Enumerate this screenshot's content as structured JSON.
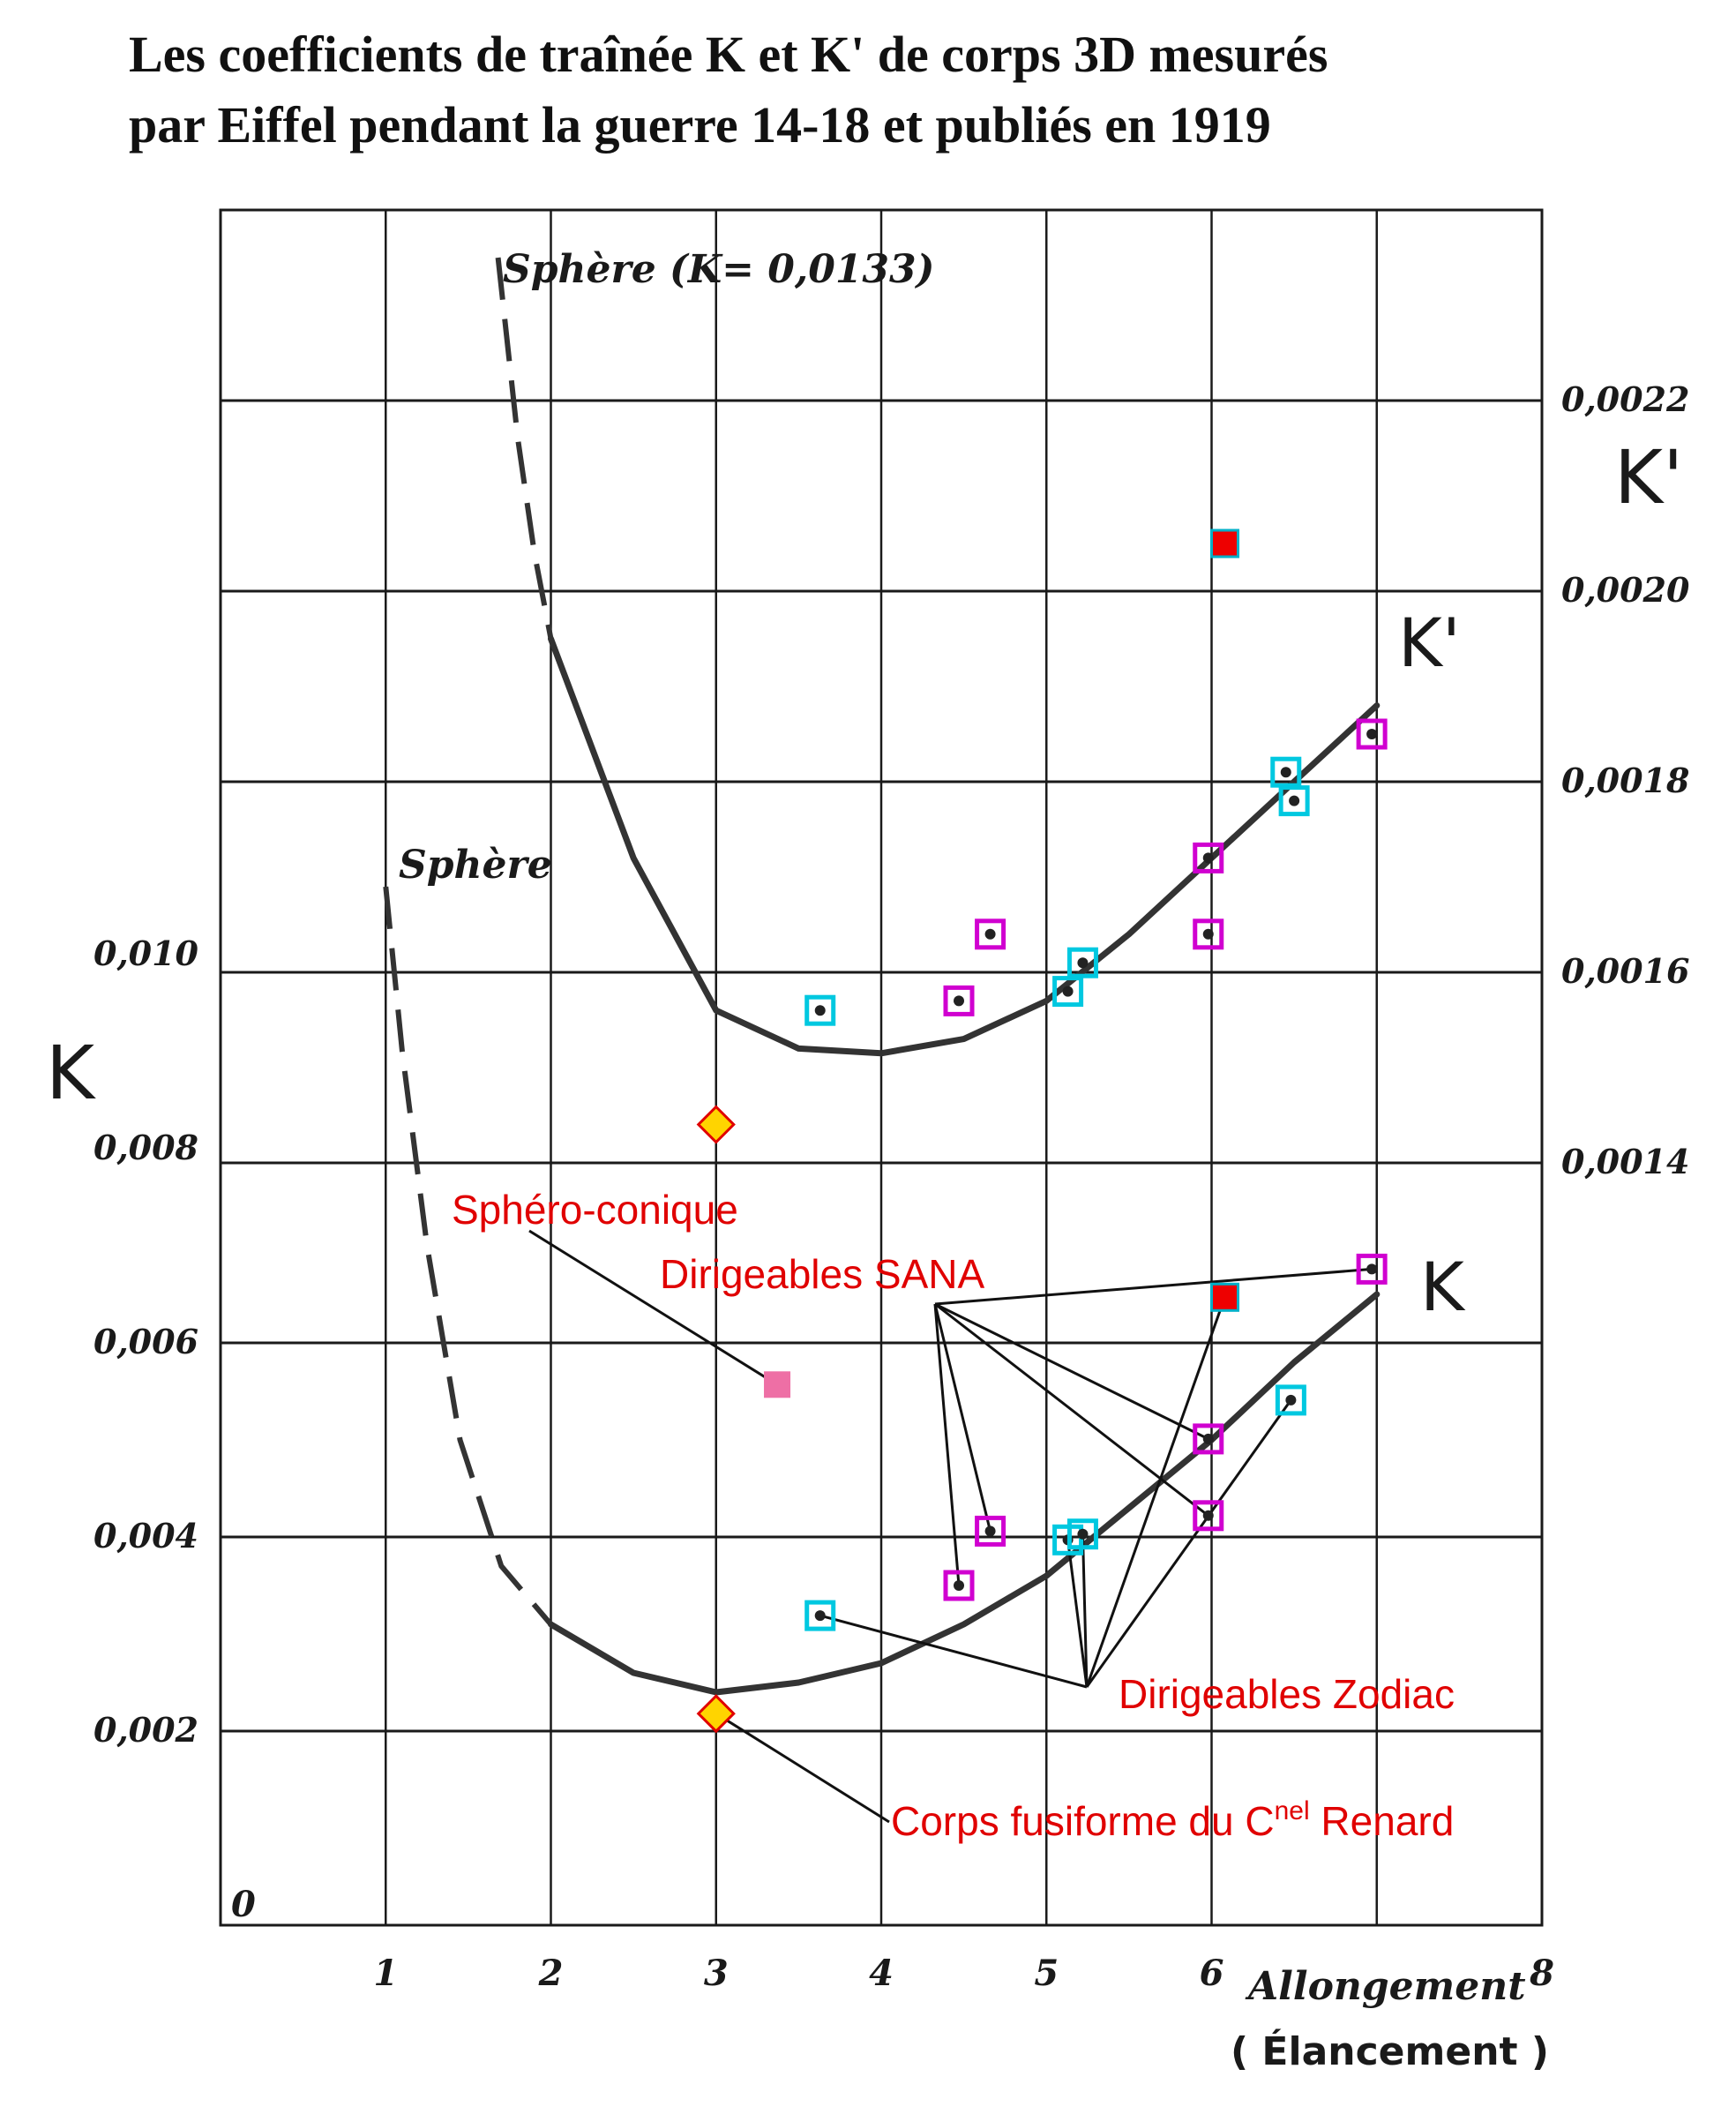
{
  "title_lines": [
    "Les coefficients de traînée K et K' de corps 3D mesurés",
    "par Eiffel pendant la guerre 14-18 et publiés en 1919"
  ],
  "colors": {
    "curve": "#333333",
    "grid": "#1a1a1a",
    "annotation": "#e00000",
    "marker_sana": "#d000d0",
    "marker_zodiac": "#00c8e0",
    "marker_red": "#ee0000",
    "marker_pink": "#ee6fa5",
    "marker_diamond": "#ffd400"
  },
  "chart_data": {
    "type": "scatter",
    "xlabel": "Allongement",
    "xlabel_sub": "( Élancement )",
    "ylabel_left": "K",
    "ylabel_right": "K'",
    "xlim": [
      0,
      8
    ],
    "ylim_left": [
      0,
      0.014
    ],
    "ylim_right": [
      0.001,
      0.0023
    ],
    "x_ticks": [
      "1",
      "2",
      "3",
      "4",
      "5",
      "6",
      "8"
    ],
    "x_tick_values": [
      1,
      2,
      3,
      4,
      5,
      6,
      8
    ],
    "origin_label": "0",
    "y_left_ticks": [
      "0,002",
      "0,004",
      "0,006",
      "0,008",
      "0,010"
    ],
    "y_left_tick_values": [
      0.002,
      0.004,
      0.006,
      0.008,
      0.01
    ],
    "y_right_ticks": [
      "0,0014",
      "0,0016",
      "0,0018",
      "0,0020",
      "0,0022"
    ],
    "y_right_tick_values": [
      0.0014,
      0.0016,
      0.0018,
      0.002,
      0.0022
    ],
    "grid": true,
    "curves": [
      {
        "label": "K'",
        "axis": "right",
        "solid": [
          [
            2.0,
            0.00195
          ],
          [
            2.5,
            0.00172
          ],
          [
            3.0,
            0.00156
          ],
          [
            3.5,
            0.00152
          ],
          [
            4.0,
            0.001515
          ],
          [
            4.5,
            0.00153
          ],
          [
            5.0,
            0.00157
          ],
          [
            5.5,
            0.00164
          ],
          [
            6.0,
            0.00172
          ],
          [
            6.5,
            0.0018
          ],
          [
            7.0,
            0.00188
          ]
        ],
        "dashed": [
          [
            1.68,
            0.00235
          ],
          [
            1.8,
            0.00216
          ],
          [
            1.9,
            0.00204
          ],
          [
            2.0,
            0.00195
          ]
        ]
      },
      {
        "label": "K",
        "axis": "left",
        "solid": [
          [
            2.0,
            0.0031
          ],
          [
            2.5,
            0.0026
          ],
          [
            3.0,
            0.0024
          ],
          [
            3.5,
            0.0025
          ],
          [
            4.0,
            0.0027
          ],
          [
            4.5,
            0.0031
          ],
          [
            5.0,
            0.0036
          ],
          [
            5.5,
            0.0043
          ],
          [
            6.0,
            0.005
          ],
          [
            6.5,
            0.0058
          ],
          [
            7.0,
            0.0065
          ]
        ],
        "dashed": [
          [
            1.0,
            0.0107
          ],
          [
            1.1,
            0.009
          ],
          [
            1.25,
            0.007
          ],
          [
            1.45,
            0.005
          ],
          [
            1.7,
            0.0037
          ],
          [
            2.0,
            0.0031
          ]
        ]
      }
    ],
    "curve_annotations": [
      {
        "text": "Sphère (K= 0,0133)",
        "x": 1.7,
        "y": 0.01365,
        "axis": "left"
      },
      {
        "text": "Sphère",
        "x": 1.05,
        "y": 0.011,
        "axis": "left"
      }
    ],
    "series": [
      {
        "name": "Dirigeables SANA",
        "marker": "square-outline",
        "color": "#d000d0",
        "k_points": [
          [
            4.47,
            0.0035
          ],
          [
            4.66,
            0.00406
          ],
          [
            5.98,
            0.00501
          ],
          [
            5.98,
            0.00422
          ],
          [
            6.97,
            0.00676
          ]
        ],
        "kprime_points": [
          [
            4.47,
            0.00157
          ],
          [
            4.66,
            0.00164
          ],
          [
            5.98,
            0.00172
          ],
          [
            5.98,
            0.00164
          ],
          [
            6.97,
            0.00185
          ]
        ]
      },
      {
        "name": "Dirigeables Zodiac",
        "marker": "square-outline",
        "color": "#00c8e0",
        "k_points": [
          [
            3.63,
            0.00319
          ],
          [
            5.13,
            0.00397
          ],
          [
            5.22,
            0.00403
          ],
          [
            6.48,
            0.00541
          ]
        ],
        "kprime_points": [
          [
            3.63,
            0.00156
          ],
          [
            5.13,
            0.00158
          ],
          [
            5.22,
            0.00161
          ],
          [
            6.45,
            0.00181
          ],
          [
            6.5,
            0.00178
          ]
        ]
      },
      {
        "name": "red",
        "marker": "filled-square",
        "color": "#ee0000",
        "k_points": [
          [
            6.08,
            0.00647
          ]
        ],
        "kprime_points": [
          [
            6.08,
            0.00205
          ]
        ]
      },
      {
        "name": "Sphéro-conique",
        "marker": "filled-square",
        "color": "#ee6fa5",
        "k_points": [
          [
            3.37,
            0.00557
          ]
        ]
      },
      {
        "name": "Corps fusiforme du Cnel Renard",
        "marker": "diamond",
        "color": "#ffd400",
        "k_points": [
          [
            3.0,
            0.00218
          ],
          [
            3.0,
            0.00825
          ]
        ]
      }
    ],
    "annotations": [
      {
        "text": "Sphéro-conique",
        "color": "#e00000"
      },
      {
        "text": "Dirigeables SANA",
        "color": "#e00000"
      },
      {
        "text": "Dirigeables Zodiac",
        "color": "#e00000"
      },
      {
        "text_main": "Corps fusiforme du C",
        "text_sup": "nel",
        "text_end": " Renard",
        "color": "#e00000"
      }
    ]
  }
}
